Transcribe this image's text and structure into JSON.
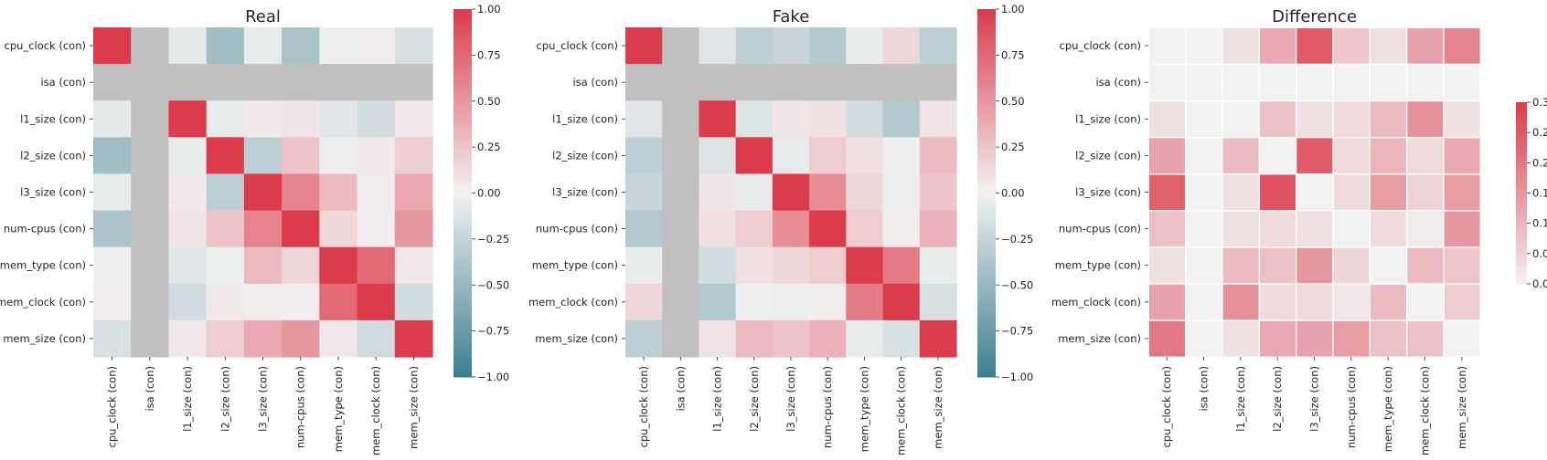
{
  "chart_data": [
    {
      "type": "heatmap",
      "title": "Real",
      "labels": [
        "cpu_clock (con)",
        "isa (con)",
        "l1_size (con)",
        "l2_size (con)",
        "l3_size (con)",
        "num-cpus (con)",
        "mem_type (con)",
        "mem_clock (con)",
        "mem_size (con)"
      ],
      "null_row_col": "isa (con)",
      "vmin": -1.0,
      "vmax": 1.0,
      "colorbar_ticks": [
        "1.00",
        "0.75",
        "0.50",
        "0.25",
        "0.00",
        "−0.25",
        "−0.50",
        "−0.75",
        "−1.00"
      ],
      "colorbar_tick_values": [
        1.0,
        0.75,
        0.5,
        0.25,
        0.0,
        -0.25,
        -0.5,
        -0.75,
        -1.0
      ],
      "values": [
        [
          1.0,
          null,
          -0.08,
          -0.45,
          -0.06,
          -0.4,
          -0.02,
          0.03,
          -0.15
        ],
        [
          null,
          null,
          null,
          null,
          null,
          null,
          null,
          null,
          null
        ],
        [
          -0.08,
          null,
          1.0,
          -0.06,
          0.05,
          0.07,
          -0.1,
          -0.18,
          0.06
        ],
        [
          -0.45,
          null,
          -0.06,
          1.0,
          -0.3,
          0.25,
          -0.03,
          0.05,
          0.2
        ],
        [
          -0.06,
          null,
          0.05,
          -0.3,
          1.0,
          0.6,
          0.3,
          0.03,
          0.4
        ],
        [
          -0.4,
          null,
          0.07,
          0.25,
          0.6,
          1.0,
          0.15,
          0.02,
          0.5
        ],
        [
          -0.02,
          null,
          -0.1,
          -0.03,
          0.3,
          0.15,
          1.0,
          0.75,
          0.06
        ],
        [
          0.03,
          null,
          -0.18,
          0.05,
          0.03,
          0.02,
          0.75,
          1.0,
          -0.2
        ],
        [
          -0.15,
          null,
          0.06,
          0.2,
          0.4,
          0.5,
          0.06,
          -0.2,
          1.0
        ]
      ]
    },
    {
      "type": "heatmap",
      "title": "Fake",
      "labels": [
        "cpu_clock (con)",
        "isa (con)",
        "l1_size (con)",
        "l2_size (con)",
        "l3_size (con)",
        "num-cpus (con)",
        "mem_type (con)",
        "mem_clock (con)",
        "mem_size (con)"
      ],
      "null_row_col": "isa (con)",
      "vmin": -1.0,
      "vmax": 1.0,
      "colorbar_ticks": [
        "1.00",
        "0.75",
        "0.50",
        "0.25",
        "0.00",
        "−0.25",
        "−0.50",
        "−0.75",
        "−1.00"
      ],
      "colorbar_tick_values": [
        1.0,
        0.75,
        0.5,
        0.25,
        0.0,
        -0.25,
        -0.5,
        -0.75,
        -1.0
      ],
      "values": [
        [
          1.0,
          null,
          -0.1,
          -0.3,
          -0.25,
          -0.35,
          -0.05,
          0.15,
          -0.3
        ],
        [
          null,
          null,
          null,
          null,
          null,
          null,
          null,
          null,
          null
        ],
        [
          -0.1,
          null,
          1.0,
          -0.12,
          0.07,
          0.1,
          -0.18,
          -0.35,
          0.08
        ],
        [
          -0.3,
          null,
          -0.12,
          1.0,
          -0.06,
          0.2,
          0.1,
          -0.02,
          0.3
        ],
        [
          -0.25,
          null,
          0.07,
          -0.06,
          1.0,
          0.55,
          0.15,
          -0.04,
          0.25
        ],
        [
          -0.35,
          null,
          0.1,
          0.2,
          0.55,
          1.0,
          0.2,
          0.03,
          0.35
        ],
        [
          -0.05,
          null,
          -0.18,
          0.1,
          0.15,
          0.2,
          1.0,
          0.65,
          -0.05
        ],
        [
          0.15,
          null,
          -0.35,
          -0.02,
          -0.04,
          0.03,
          0.65,
          1.0,
          -0.15
        ],
        [
          -0.3,
          null,
          0.08,
          0.3,
          0.25,
          0.35,
          -0.05,
          -0.15,
          1.0
        ]
      ]
    },
    {
      "type": "heatmap",
      "title": "Difference",
      "labels": [
        "cpu_clock (con)",
        "isa (con)",
        "l1_size (con)",
        "l2_size (con)",
        "l3_size (con)",
        "num-cpus (con)",
        "mem_type (con)",
        "mem_clock (con)",
        "mem_size (con)"
      ],
      "vmin": 0.0,
      "vmax": 0.3,
      "colorbar_ticks": [
        "0.30",
        "0.25",
        "0.20",
        "0.15",
        "0.10",
        "0.05",
        "0.00"
      ],
      "colorbar_tick_values": [
        0.3,
        0.25,
        0.2,
        0.15,
        0.1,
        0.05,
        0.0
      ],
      "values": [
        [
          0.0,
          0.0,
          0.03,
          0.12,
          0.25,
          0.07,
          0.03,
          0.13,
          0.18
        ],
        [
          0.0,
          0.0,
          0.0,
          0.0,
          0.0,
          0.0,
          0.0,
          0.0,
          0.0
        ],
        [
          0.03,
          0.0,
          0.0,
          0.08,
          0.03,
          0.04,
          0.09,
          0.16,
          0.03
        ],
        [
          0.13,
          0.0,
          0.09,
          0.0,
          0.25,
          0.04,
          0.1,
          0.04,
          0.12
        ],
        [
          0.24,
          0.0,
          0.03,
          0.26,
          0.0,
          0.04,
          0.14,
          0.05,
          0.14
        ],
        [
          0.08,
          0.0,
          0.03,
          0.04,
          0.03,
          0.0,
          0.04,
          0.01,
          0.15
        ],
        [
          0.03,
          0.0,
          0.09,
          0.08,
          0.15,
          0.05,
          0.0,
          0.09,
          0.07
        ],
        [
          0.13,
          0.0,
          0.16,
          0.04,
          0.04,
          0.02,
          0.09,
          0.0,
          0.06
        ],
        [
          0.2,
          0.0,
          0.03,
          0.12,
          0.13,
          0.14,
          0.08,
          0.08,
          0.0
        ]
      ]
    }
  ],
  "colors": {
    "negative": "#3d7d91",
    "neutral": "#f2f2f2",
    "positive": "#dc3b4b",
    "nan": "#c0c0c0",
    "text": "#262626",
    "cell_border": "#ffffff"
  }
}
